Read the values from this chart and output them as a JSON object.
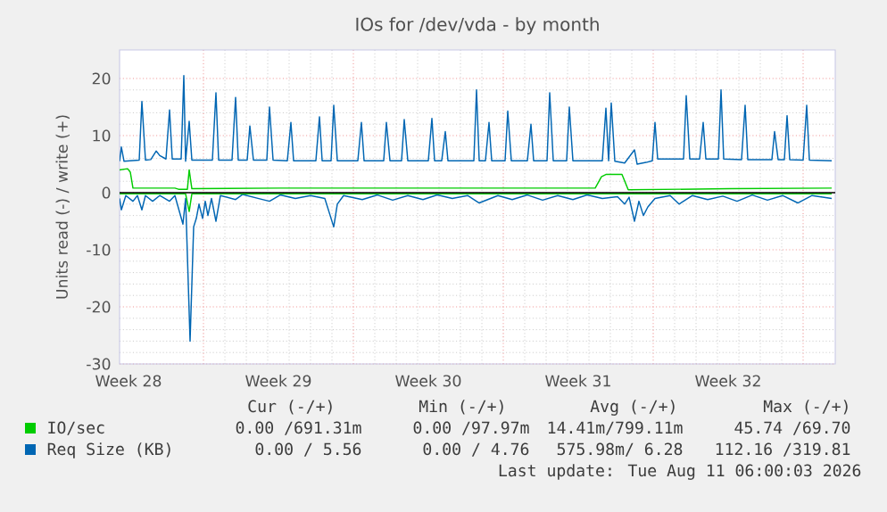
{
  "chart_data": {
    "type": "line",
    "title": "IOs for /dev/vda - by month",
    "ylabel": "Units read (-) / write (+)",
    "xlim": [
      "2026-07-09T02:00",
      "2026-08-11T12:00"
    ],
    "ylim": [
      -30,
      25
    ],
    "xticks": [
      {
        "value": "2026-07-09T12:00",
        "label": "Week 28"
      },
      {
        "value": "2026-07-16T12:00",
        "label": "Week 29"
      },
      {
        "value": "2026-07-23T12:00",
        "label": "Week 30"
      },
      {
        "value": "2026-07-30T12:00",
        "label": "Week 31"
      },
      {
        "value": "2026-08-06T12:00",
        "label": "Week 32"
      },
      {
        "value": "2026-07-13",
        "label": null
      },
      {
        "value": "2026-07-20",
        "label": null
      },
      {
        "value": "2026-07-27",
        "label": null
      },
      {
        "value": "2026-08-03",
        "label": null
      },
      {
        "value": "2026-08-10",
        "label": null
      }
    ],
    "yticks": [
      -30,
      -20,
      -10,
      0,
      10,
      20
    ],
    "grid": true,
    "legend": "bottom",
    "marker": "none",
    "line_style": "solid",
    "ref_lines": [
      {
        "axis": "y",
        "value": 0,
        "color": "#000000"
      }
    ],
    "annotations": [
      "Cur (-/+)",
      "Min (-/+)",
      "Avg (-/+)",
      "Max (-/+)",
      "0.00 /691.31m",
      "0.00 /97.97m",
      "14.41m/799.11m",
      "45.74 /69.70",
      "0.00 / 5.56",
      "0.00 / 4.76",
      "575.98m/ 6.28",
      "112.16 /319.81",
      "Last update: Tue Aug 11 06:00:03 2026"
    ],
    "series": [
      {
        "name": "IO/sec",
        "color": "#00cc00",
        "x": [
          "2026-07-09T02:00",
          "2026-07-09T11:00",
          "2026-07-09T14:00",
          "2026-07-09T17:00",
          "2026-07-11T16:00",
          "2026-07-11T20:00",
          "2026-07-12T06:00",
          "2026-07-12T08:00",
          "2026-07-12T11:00",
          "2026-07-16T14:00",
          "2026-07-23T14:00",
          "2026-07-31T07:00",
          "2026-07-31T14:00",
          "2026-07-31T19:00",
          "2026-08-01T13:00",
          "2026-08-01T20:00",
          "2026-08-06T14:00",
          "2026-08-11T08:00"
        ],
        "values": [
          4,
          4.2,
          3.6,
          0.8,
          0.8,
          0.6,
          0.6,
          4,
          0.7,
          0.8,
          0.8,
          0.8,
          2.8,
          3.2,
          3.2,
          0.5,
          0.7,
          0.8
        ]
      },
      {
        "name": "Req Size (KB)",
        "color": "#0066b3",
        "x": [
          "2026-07-09T02:00",
          "2026-07-09T04:00",
          "2026-07-09T07:00",
          "2026-07-10T00:00",
          "2026-07-10T03:00",
          "2026-07-10T07:00",
          "2026-07-10T13:00",
          "2026-07-10T19:00",
          "2026-07-10T23:00",
          "2026-07-11T06:00",
          "2026-07-11T10:00",
          "2026-07-11T13:00",
          "2026-07-11T23:00",
          "2026-07-12T02:00",
          "2026-07-12T04:00",
          "2026-07-12T08:00",
          "2026-07-12T11:00",
          "2026-07-13T10:00",
          "2026-07-13T14:00",
          "2026-07-13T17:00",
          "2026-07-14T08:00",
          "2026-07-14T12:00",
          "2026-07-14T15:00",
          "2026-07-15T01:00",
          "2026-07-15T04:00",
          "2026-07-15T08:00",
          "2026-07-15T23:00",
          "2026-07-16T02:00",
          "2026-07-16T06:00",
          "2026-07-16T22:00",
          "2026-07-17T02:00",
          "2026-07-17T05:00",
          "2026-07-18T06:00",
          "2026-07-18T10:00",
          "2026-07-18T13:00",
          "2026-07-18T23:00",
          "2026-07-19T02:00",
          "2026-07-19T06:00",
          "2026-07-20T05:00",
          "2026-07-20T09:00",
          "2026-07-20T12:00",
          "2026-07-21T10:00",
          "2026-07-21T13:00",
          "2026-07-21T17:00",
          "2026-07-22T06:00",
          "2026-07-22T09:00",
          "2026-07-22T13:00",
          "2026-07-23T12:00",
          "2026-07-23T16:00",
          "2026-07-23T19:00",
          "2026-07-24T03:00",
          "2026-07-24T07:00",
          "2026-07-24T10:00",
          "2026-07-25T15:00",
          "2026-07-25T18:00",
          "2026-07-25T21:00",
          "2026-07-26T04:00",
          "2026-07-26T08:00",
          "2026-07-26T11:00",
          "2026-07-27T02:00",
          "2026-07-27T05:00",
          "2026-07-27T09:00",
          "2026-07-28T03:00",
          "2026-07-28T07:00",
          "2026-07-28T10:00",
          "2026-07-29T01:00",
          "2026-07-29T04:00",
          "2026-07-29T08:00",
          "2026-07-29T23:00",
          "2026-07-30T02:00",
          "2026-07-30T06:00",
          "2026-07-31T15:00",
          "2026-07-31T19:00",
          "2026-07-31T22:00",
          "2026-08-01T01:00",
          "2026-08-01T05:00",
          "2026-08-01T16:00",
          "2026-08-02T03:00",
          "2026-08-02T06:00",
          "2026-08-02T16:00",
          "2026-08-02T23:00",
          "2026-08-03T02:00",
          "2026-08-03T05:00",
          "2026-08-04T10:00",
          "2026-08-04T13:00",
          "2026-08-04T17:00",
          "2026-08-05T04:00",
          "2026-08-05T08:00",
          "2026-08-05T11:00",
          "2026-08-06T01:00",
          "2026-08-06T04:00",
          "2026-08-06T07:00",
          "2026-08-07T03:00",
          "2026-08-07T07:00",
          "2026-08-07T10:00",
          "2026-08-08T13:00",
          "2026-08-08T16:00",
          "2026-08-08T20:00",
          "2026-08-09T03:00",
          "2026-08-09T06:00",
          "2026-08-09T09:00",
          "2026-08-10T00:00",
          "2026-08-10T04:00",
          "2026-08-10T07:00",
          "2026-08-11T08:00"
        ],
        "values": [
          5.5,
          8,
          5.5,
          5.7,
          16,
          5.7,
          5.8,
          7.3,
          6.5,
          5.9,
          14.5,
          5.9,
          5.9,
          20.5,
          5.5,
          12.5,
          5.7,
          5.7,
          17.5,
          5.7,
          5.7,
          16.7,
          5.7,
          5.7,
          11.7,
          5.7,
          5.7,
          15,
          5.7,
          5.6,
          12.3,
          5.6,
          5.6,
          13.3,
          5.6,
          5.6,
          15.3,
          5.6,
          5.6,
          12.3,
          5.6,
          5.6,
          12.3,
          5.6,
          5.6,
          12.8,
          5.6,
          5.6,
          13,
          5.6,
          5.6,
          10.7,
          5.6,
          5.6,
          18,
          5.6,
          5.6,
          12.3,
          5.6,
          5.6,
          14.3,
          5.6,
          5.6,
          12,
          5.6,
          5.6,
          17.5,
          5.6,
          5.6,
          15,
          5.6,
          5.6,
          14.8,
          5.6,
          15.7,
          5.5,
          5.2,
          7.5,
          5.0,
          5.3,
          5.6,
          12.3,
          5.9,
          5.9,
          17,
          5.9,
          5.9,
          12.3,
          5.9,
          5.9,
          18,
          5.9,
          5.8,
          15.3,
          5.8,
          5.8,
          10.7,
          5.8,
          5.8,
          13.5,
          5.8,
          5.7,
          15.3,
          5.7,
          5.6
        ]
      },
      {
        "color": "#00cc00",
        "x": [
          "2026-07-09T02:00",
          "2026-07-12T04:00",
          "2026-07-12T08:00",
          "2026-07-12T11:00",
          "2026-08-11T08:00"
        ],
        "values": [
          -0.2,
          -0.2,
          -3.3,
          -0.2,
          -0.2
        ]
      },
      {
        "color": "#0066b3",
        "x": [
          "2026-07-09T02:00",
          "2026-07-09T04:00",
          "2026-07-09T09:00",
          "2026-07-09T17:00",
          "2026-07-09T22:00",
          "2026-07-10T03:00",
          "2026-07-10T07:00",
          "2026-07-10T15:00",
          "2026-07-10T23:00",
          "2026-07-11T10:00",
          "2026-07-11T16:00",
          "2026-07-12T01:00",
          "2026-07-12T04:00",
          "2026-07-12T09:00",
          "2026-07-12T13:00",
          "2026-07-12T16:00",
          "2026-07-12T19:00",
          "2026-07-12T23:00",
          "2026-07-13T02:00",
          "2026-07-13T05:00",
          "2026-07-13T09:00",
          "2026-07-13T14:00",
          "2026-07-13T19:00",
          "2026-07-14T12:00",
          "2026-07-14T20:00",
          "2026-07-15T13:00",
          "2026-07-16T02:00",
          "2026-07-16T14:00",
          "2026-07-17T07:00",
          "2026-07-18T00:00",
          "2026-07-18T16:00",
          "2026-07-19T02:00",
          "2026-07-19T06:00",
          "2026-07-19T13:00",
          "2026-07-20T10:00",
          "2026-07-21T03:00",
          "2026-07-21T20:00",
          "2026-07-22T13:00",
          "2026-07-23T06:00",
          "2026-07-23T22:00",
          "2026-07-24T15:00",
          "2026-07-25T08:00",
          "2026-07-25T21:00",
          "2026-07-26T18:00",
          "2026-07-27T10:00",
          "2026-07-28T03:00",
          "2026-07-28T20:00",
          "2026-07-29T13:00",
          "2026-07-30T06:00",
          "2026-07-30T22:00",
          "2026-07-31T15:00",
          "2026-08-01T08:00",
          "2026-08-01T16:00",
          "2026-08-01T21:00",
          "2026-08-02T03:00",
          "2026-08-02T08:00",
          "2026-08-02T13:00",
          "2026-08-02T18:00",
          "2026-08-03T02:00",
          "2026-08-03T19:00",
          "2026-08-04T05:00",
          "2026-08-04T20:00",
          "2026-08-05T13:00",
          "2026-08-06T06:00",
          "2026-08-06T22:00",
          "2026-08-07T15:00",
          "2026-08-08T08:00",
          "2026-08-09T01:00",
          "2026-08-09T18:00",
          "2026-08-10T10:00",
          "2026-08-11T08:00"
        ],
        "values": [
          -1,
          -3,
          -0.5,
          -1.5,
          -0.5,
          -3,
          -0.5,
          -1.5,
          -0.5,
          -1.5,
          -0.5,
          -5.5,
          -1,
          -26,
          -6,
          -4.5,
          -2,
          -4.5,
          -1.5,
          -4,
          -1,
          -5,
          -0.5,
          -1.2,
          -0.3,
          -1,
          -1.5,
          -0.4,
          -1,
          -0.5,
          -1,
          -6,
          -2,
          -0.5,
          -1.2,
          -0.4,
          -1.3,
          -0.5,
          -1.2,
          -0.4,
          -1,
          -0.5,
          -1.8,
          -0.5,
          -1.2,
          -0.4,
          -1.3,
          -0.5,
          -1.2,
          -0.4,
          -1,
          -0.7,
          -2,
          -0.8,
          -5,
          -1.5,
          -4,
          -2.5,
          -1,
          -0.5,
          -2,
          -0.5,
          -1.2,
          -0.6,
          -1.5,
          -0.4,
          -1.3,
          -0.5,
          -1.8,
          -0.5,
          -1
        ]
      }
    ]
  }
}
